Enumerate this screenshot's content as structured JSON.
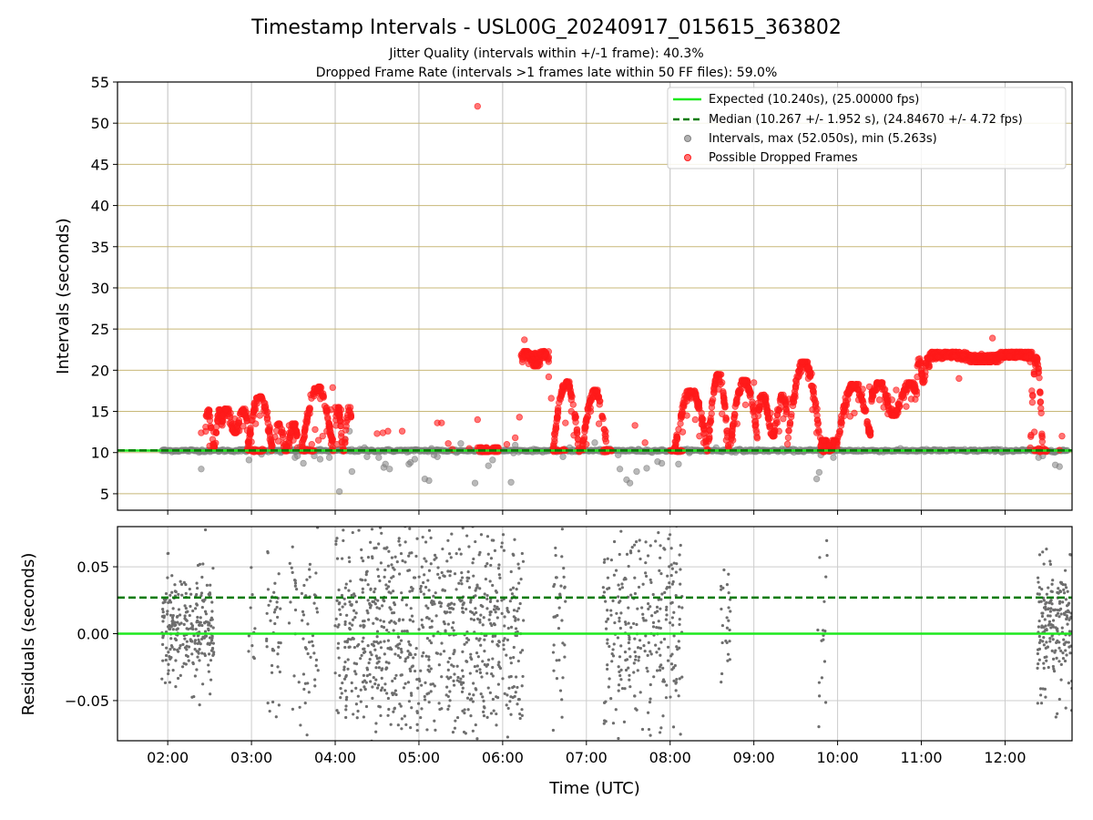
{
  "figure": {
    "title": "Timestamp Intervals - USL00G_20240917_015615_363802",
    "subtitle_jitter": "Jitter Quality (intervals within +/-1 frame): 40.3%",
    "subtitle_dropped": "Dropped Frame Rate (intervals >1 frames late within 50 FF files): 59.0%"
  },
  "colors": {
    "expected": "#1ee81e",
    "median": "#007a00",
    "intervals": "#7f7f7f",
    "dropped": "#ff1a1a",
    "grid_top": "#c8b878",
    "grid_bottom": "#cccccc"
  },
  "chart_data": [
    {
      "type": "scatter",
      "panel": "intervals",
      "xlabel": "",
      "ylabel": "Intervals (seconds)",
      "ylim": [
        3,
        55
      ],
      "yticks": [
        5,
        10,
        15,
        20,
        25,
        30,
        35,
        40,
        45,
        50,
        55
      ],
      "xlim_hours": [
        1.4,
        12.8
      ],
      "grid": true,
      "legend_position": "top-right",
      "legend": [
        "Expected (10.240s), (25.00000 fps)",
        "Median (10.267 +/- 1.952 s), (24.84670 +/- 4.72 fps)",
        "Intervals, max (52.050s), min (5.263s)",
        "Possible Dropped Frames"
      ],
      "reference_lines": {
        "expected": 10.24,
        "median": 10.267
      },
      "normal_band": {
        "x_range_hours": [
          1.93,
          12.75
        ],
        "y": 10.24
      },
      "gray_outliers": [
        [
          1.95,
          10.3
        ],
        [
          2.4,
          8.0
        ],
        [
          2.95,
          10.6
        ],
        [
          2.97,
          9.1
        ],
        [
          3.12,
          9.8
        ],
        [
          3.35,
          10.0
        ],
        [
          3.52,
          9.4
        ],
        [
          3.55,
          9.6
        ],
        [
          3.58,
          10.7
        ],
        [
          3.62,
          8.7
        ],
        [
          3.75,
          9.6
        ],
        [
          3.82,
          9.2
        ],
        [
          3.93,
          9.4
        ],
        [
          4.05,
          5.263
        ],
        [
          4.12,
          11.6
        ],
        [
          4.17,
          12.6
        ],
        [
          4.2,
          7.7
        ],
        [
          4.35,
          10.6
        ],
        [
          4.38,
          9.5
        ],
        [
          4.52,
          9.4
        ],
        [
          4.55,
          10.2
        ],
        [
          4.58,
          8.2
        ],
        [
          4.6,
          8.6
        ],
        [
          4.65,
          8.0
        ],
        [
          4.88,
          8.6
        ],
        [
          4.9,
          8.8
        ],
        [
          4.95,
          9.2
        ],
        [
          5.07,
          6.8
        ],
        [
          5.12,
          6.6
        ],
        [
          5.15,
          10.5
        ],
        [
          5.18,
          9.7
        ],
        [
          5.22,
          9.5
        ],
        [
          5.45,
          10.0
        ],
        [
          5.5,
          11.1
        ],
        [
          5.67,
          6.3
        ],
        [
          5.83,
          8.4
        ],
        [
          5.88,
          9.1
        ],
        [
          6.1,
          6.4
        ],
        [
          6.15,
          10.9
        ],
        [
          6.72,
          9.5
        ],
        [
          6.8,
          10.6
        ],
        [
          7.1,
          11.2
        ],
        [
          7.38,
          9.7
        ],
        [
          7.4,
          8.0
        ],
        [
          7.48,
          6.7
        ],
        [
          7.52,
          6.3
        ],
        [
          7.6,
          7.7
        ],
        [
          7.72,
          8.1
        ],
        [
          7.85,
          8.9
        ],
        [
          7.9,
          8.7
        ],
        [
          8.1,
          8.6
        ],
        [
          8.55,
          10.6
        ],
        [
          9.75,
          6.8
        ],
        [
          9.78,
          7.6
        ],
        [
          9.8,
          9.7
        ],
        [
          9.95,
          9.4
        ],
        [
          9.98,
          10.4
        ],
        [
          12.4,
          9.4
        ],
        [
          12.45,
          9.6
        ],
        [
          12.6,
          8.5
        ],
        [
          12.65,
          8.3
        ]
      ],
      "dropped_frame_points": [
        [
          2.4,
          12.4
        ],
        [
          2.5,
          10.8
        ],
        [
          2.55,
          12.5
        ],
        [
          2.6,
          13.8
        ],
        [
          2.65,
          14.5
        ],
        [
          2.7,
          15.2
        ],
        [
          2.75,
          14.8
        ],
        [
          2.8,
          14.1
        ],
        [
          2.85,
          13.6
        ],
        [
          2.9,
          13.2
        ],
        [
          2.95,
          12.7
        ],
        [
          3.0,
          11.3
        ],
        [
          3.05,
          13.5
        ],
        [
          3.1,
          14.5
        ],
        [
          3.12,
          16.6
        ],
        [
          3.15,
          15.1
        ],
        [
          3.2,
          12.6
        ],
        [
          3.25,
          10.8
        ],
        [
          3.32,
          11.4
        ],
        [
          3.38,
          12.4
        ],
        [
          3.45,
          13.3
        ],
        [
          3.5,
          11.5
        ],
        [
          3.55,
          10.6
        ],
        [
          3.65,
          10.4
        ],
        [
          3.72,
          11.0
        ],
        [
          3.76,
          12.8
        ],
        [
          3.8,
          11.5
        ],
        [
          3.85,
          12.0
        ],
        [
          3.9,
          12.6
        ],
        [
          3.95,
          15.2
        ],
        [
          3.97,
          17.9
        ],
        [
          4.0,
          15.5
        ],
        [
          4.02,
          11.0
        ],
        [
          4.07,
          15.2
        ],
        [
          4.1,
          10.4
        ],
        [
          4.5,
          12.3
        ],
        [
          4.57,
          12.4
        ],
        [
          4.63,
          12.6
        ],
        [
          4.8,
          12.6
        ],
        [
          5.22,
          13.6
        ],
        [
          5.27,
          13.6
        ],
        [
          5.35,
          11.1
        ],
        [
          5.4,
          10.4
        ],
        [
          5.6,
          10.5
        ],
        [
          5.7,
          14.0
        ],
        [
          5.75,
          10.3
        ],
        [
          5.8,
          10.4
        ],
        [
          5.85,
          10.3
        ],
        [
          6.05,
          11.0
        ],
        [
          6.15,
          11.8
        ],
        [
          6.2,
          14.3
        ],
        [
          6.25,
          21.6
        ],
        [
          6.26,
          23.7
        ],
        [
          6.3,
          21.8
        ],
        [
          6.35,
          22.0
        ],
        [
          6.4,
          22.0
        ],
        [
          6.45,
          21.9
        ],
        [
          6.5,
          21.7
        ],
        [
          6.55,
          19.2
        ],
        [
          6.58,
          16.6
        ],
        [
          6.6,
          10.4
        ],
        [
          6.65,
          10.2
        ],
        [
          6.72,
          10.3
        ],
        [
          6.75,
          13.6
        ],
        [
          6.8,
          18.0
        ],
        [
          6.82,
          15.0
        ],
        [
          6.85,
          12.1
        ],
        [
          6.9,
          10.3
        ],
        [
          6.95,
          10.4
        ],
        [
          7.0,
          11.0
        ],
        [
          7.05,
          15.0
        ],
        [
          7.12,
          17.5
        ],
        [
          7.15,
          13.5
        ],
        [
          7.2,
          10.3
        ],
        [
          7.25,
          10.2
        ],
        [
          7.3,
          10.2
        ],
        [
          7.58,
          13.3
        ],
        [
          7.7,
          11.2
        ],
        [
          8.05,
          10.6
        ],
        [
          8.15,
          12.5
        ],
        [
          8.2,
          14.5
        ],
        [
          8.25,
          16.6
        ],
        [
          8.3,
          14.0
        ],
        [
          8.35,
          12.0
        ],
        [
          8.4,
          11.2
        ],
        [
          8.45,
          13.3
        ],
        [
          8.5,
          16.0
        ],
        [
          8.55,
          19.0
        ],
        [
          8.58,
          17.7
        ],
        [
          8.62,
          14.7
        ],
        [
          8.67,
          11.5
        ],
        [
          8.7,
          10.5
        ],
        [
          8.75,
          11.5
        ],
        [
          8.8,
          13.5
        ],
        [
          8.9,
          15.8
        ],
        [
          8.95,
          17.0
        ],
        [
          9.0,
          18.5
        ],
        [
          9.05,
          16.0
        ],
        [
          9.12,
          15.6
        ],
        [
          9.2,
          14.8
        ],
        [
          9.25,
          13.3
        ],
        [
          9.3,
          12.6
        ],
        [
          9.35,
          14.1
        ],
        [
          9.42,
          16.5
        ],
        [
          9.5,
          18.0
        ],
        [
          9.55,
          19.6
        ],
        [
          9.58,
          21.0
        ],
        [
          9.65,
          19.0
        ],
        [
          9.7,
          15.2
        ],
        [
          9.75,
          12.4
        ],
        [
          9.8,
          10.8
        ],
        [
          9.85,
          10.3
        ],
        [
          9.9,
          10.9
        ],
        [
          10.0,
          11.7
        ],
        [
          10.05,
          13.6
        ],
        [
          10.1,
          15.0
        ],
        [
          10.15,
          14.4
        ],
        [
          10.2,
          14.8
        ],
        [
          10.25,
          16.4
        ],
        [
          10.3,
          17.7
        ],
        [
          10.38,
          18.0
        ],
        [
          10.45,
          17.5
        ],
        [
          10.5,
          16.4
        ],
        [
          10.55,
          15.5
        ],
        [
          10.6,
          14.7
        ],
        [
          10.65,
          16.4
        ],
        [
          10.7,
          17.6
        ],
        [
          10.78,
          17.0
        ],
        [
          10.82,
          15.6
        ],
        [
          10.88,
          16.5
        ],
        [
          10.92,
          18.3
        ],
        [
          11.0,
          19.5
        ],
        [
          11.05,
          20.9
        ],
        [
          11.1,
          21.4
        ],
        [
          11.2,
          21.6
        ],
        [
          11.3,
          21.6
        ],
        [
          11.4,
          21.7
        ],
        [
          11.45,
          19.0
        ],
        [
          11.5,
          21.8
        ],
        [
          11.6,
          21.7
        ],
        [
          11.7,
          21.6
        ],
        [
          11.82,
          21.7
        ],
        [
          11.85,
          23.9
        ],
        [
          11.95,
          21.8
        ],
        [
          12.05,
          21.7
        ],
        [
          12.15,
          21.6
        ],
        [
          12.25,
          21.6
        ],
        [
          12.3,
          21.0
        ],
        [
          12.32,
          17.5
        ],
        [
          12.35,
          12.5
        ],
        [
          12.4,
          10.5
        ],
        [
          12.5,
          10.2
        ],
        [
          12.65,
          10.3
        ],
        [
          12.68,
          12.0
        ],
        [
          5.7,
          52.05
        ]
      ],
      "dropped_frame_segments": [
        [
          2.45,
          2.65,
          10.7,
          15.2
        ],
        [
          2.65,
          2.95,
          12.4,
          15.3
        ],
        [
          2.95,
          3.25,
          10.2,
          16.8
        ],
        [
          3.28,
          3.55,
          10.2,
          13.5
        ],
        [
          3.6,
          3.98,
          10.2,
          18.0
        ],
        [
          4.0,
          4.2,
          10.2,
          15.5
        ],
        [
          5.7,
          5.95,
          10.1,
          10.6
        ],
        [
          6.22,
          6.55,
          20.5,
          22.3
        ],
        [
          6.6,
          6.92,
          10.1,
          18.6
        ],
        [
          6.95,
          7.25,
          10.1,
          17.6
        ],
        [
          8.05,
          8.45,
          10.1,
          17.5
        ],
        [
          8.45,
          8.7,
          10.3,
          19.5
        ],
        [
          8.72,
          9.05,
          11.0,
          18.8
        ],
        [
          9.05,
          9.4,
          12.0,
          17.0
        ],
        [
          9.4,
          9.8,
          10.8,
          21.0
        ],
        [
          9.8,
          10.0,
          10.3,
          11.5
        ],
        [
          10.0,
          10.4,
          11.5,
          18.3
        ],
        [
          10.4,
          10.95,
          14.5,
          18.5
        ],
        [
          10.95,
          11.1,
          18.5,
          21.5
        ],
        [
          11.1,
          12.35,
          21.0,
          22.2
        ],
        [
          12.3,
          12.45,
          10.2,
          21.6
        ]
      ],
      "flat_segments": [
        [
          1.93,
          12.75,
          10.24
        ]
      ]
    },
    {
      "type": "scatter",
      "panel": "residuals",
      "xlabel": "Time (UTC)",
      "ylabel": "Residuals (seconds)",
      "ylim": [
        -0.08,
        0.08
      ],
      "yticks": [
        -0.05,
        0.0,
        0.05
      ],
      "ytick_labels": [
        "−0.05",
        "0.00",
        "0.05"
      ],
      "xlim_hours": [
        1.4,
        12.8
      ],
      "xticks_hours": [
        2,
        3,
        4,
        5,
        6,
        7,
        8,
        9,
        10,
        11,
        12
      ],
      "xtick_labels": [
        "02:00",
        "03:00",
        "04:00",
        "05:00",
        "06:00",
        "07:00",
        "08:00",
        "09:00",
        "10:00",
        "11:00",
        "12:00"
      ],
      "grid": true,
      "reference_lines": {
        "expected": 0.0,
        "median": 0.027
      },
      "clusters": [
        {
          "x": [
            1.93,
            2.55
          ],
          "n": 260,
          "spread": 0.035
        },
        {
          "x": [
            2.95,
            3.05
          ],
          "n": 10,
          "spread": 0.06
        },
        {
          "x": [
            3.18,
            3.35
          ],
          "n": 40,
          "spread": 0.06
        },
        {
          "x": [
            3.45,
            3.8
          ],
          "n": 60,
          "spread": 0.07
        },
        {
          "x": [
            4.0,
            6.25
          ],
          "n": 900,
          "spread": 0.08
        },
        {
          "x": [
            6.6,
            6.75
          ],
          "n": 40,
          "spread": 0.06
        },
        {
          "x": [
            7.2,
            8.15
          ],
          "n": 300,
          "spread": 0.08
        },
        {
          "x": [
            8.6,
            8.72
          ],
          "n": 25,
          "spread": 0.04
        },
        {
          "x": [
            9.75,
            9.88
          ],
          "n": 20,
          "spread": 0.08
        },
        {
          "x": [
            12.38,
            12.8
          ],
          "n": 200,
          "spread": 0.045
        }
      ]
    }
  ]
}
